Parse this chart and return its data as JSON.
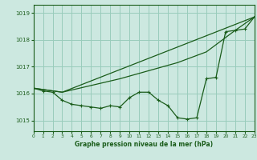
{
  "bg_color": "#cce8e0",
  "grid_color": "#99ccbb",
  "line_color": "#1a5c1a",
  "xlabel": "Graphe pression niveau de la mer (hPa)",
  "xlabel_color": "#1a5c1a",
  "xlim": [
    0,
    23
  ],
  "ylim": [
    1014.6,
    1019.3
  ],
  "yticks": [
    1015,
    1016,
    1017,
    1018,
    1019
  ],
  "xticks": [
    0,
    1,
    2,
    3,
    4,
    5,
    6,
    7,
    8,
    9,
    10,
    11,
    12,
    13,
    14,
    15,
    16,
    17,
    18,
    19,
    20,
    21,
    22,
    23
  ],
  "series1_x": [
    0,
    1,
    2,
    3,
    4,
    5,
    6,
    7,
    8,
    9,
    10,
    11,
    12,
    13,
    14,
    15,
    16,
    17,
    18,
    19,
    20,
    21,
    22,
    23
  ],
  "series1_y": [
    1016.2,
    1016.1,
    1016.05,
    1015.75,
    1015.6,
    1015.55,
    1015.5,
    1015.45,
    1015.55,
    1015.5,
    1015.85,
    1016.05,
    1016.05,
    1015.75,
    1015.55,
    1015.1,
    1015.05,
    1015.1,
    1016.55,
    1016.6,
    1018.3,
    1018.35,
    1018.4,
    1018.85
  ],
  "series2_x": [
    0,
    3,
    9,
    12,
    15,
    18,
    21,
    23
  ],
  "series2_y": [
    1016.2,
    1016.05,
    1016.55,
    1016.85,
    1017.15,
    1017.55,
    1018.35,
    1018.85
  ],
  "series3_x": [
    0,
    3,
    23
  ],
  "series3_y": [
    1016.2,
    1016.05,
    1018.85
  ]
}
